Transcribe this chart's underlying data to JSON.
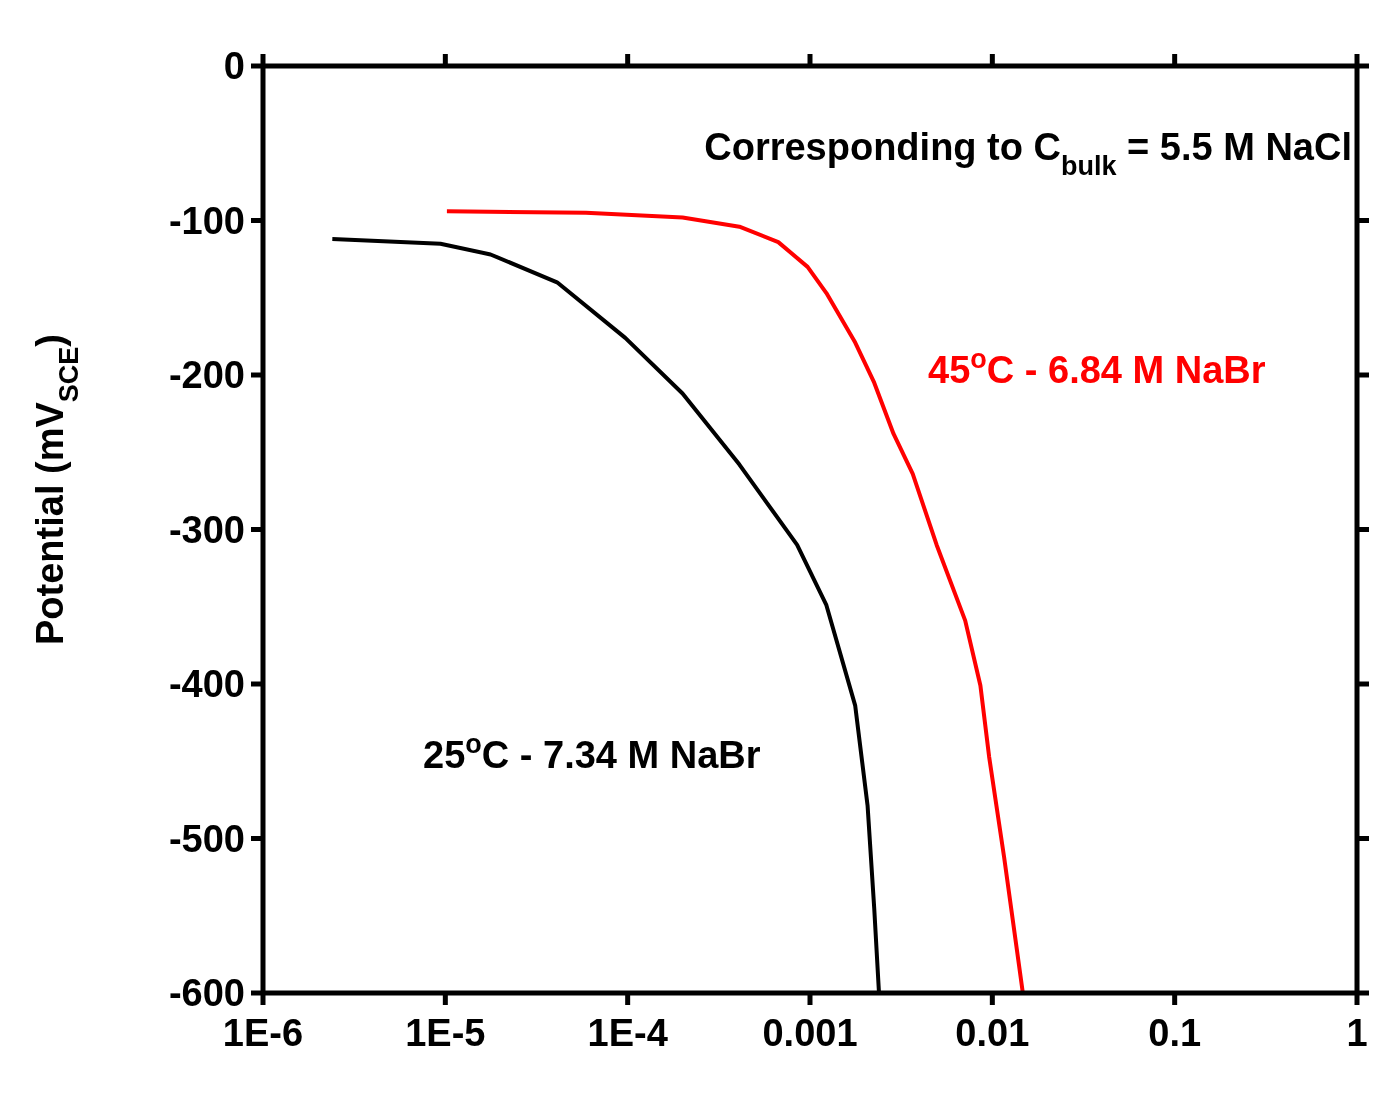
{
  "chart_data": {
    "type": "line",
    "ylabel": "Potential (mV$_{SCE}$)",
    "annotations": [
      "Corresponding to C$_{bulk}$ = 5.5 M NaCl"
    ],
    "log": "x",
    "xlim": [
      1e-06,
      1
    ],
    "xticks": [
      {
        "value": 1e-06,
        "label": "1E-6"
      },
      {
        "value": 1e-05,
        "label": "1E-5"
      },
      {
        "value": 0.0001,
        "label": "1E-4"
      },
      0.001,
      0.01,
      0.1,
      1
    ],
    "ylim": [
      -600,
      0
    ],
    "yticks": [
      -600,
      -500,
      -400,
      -300,
      -200,
      -100,
      0
    ],
    "marker": "none",
    "line_style": "solid",
    "series": [
      {
        "name": "25$^{o}$C - 7.34 M NaBr",
        "color": "#000000",
        "x": [
          2.4e-06,
          9.4e-06,
          1.77e-05,
          4.1e-05,
          9.7e-05,
          0.0002,
          0.00041,
          0.00085,
          0.00123,
          0.00177,
          0.00207,
          0.00225,
          0.00239
        ],
        "values": [
          -112,
          -115,
          -122,
          -140,
          -176,
          -212,
          -258,
          -310,
          -349,
          -414,
          -479,
          -545,
          -600
        ]
      },
      {
        "name": "45$^{o}$C - 6.84 M NaBr",
        "color": "#ff0000",
        "x": [
          1.02e-05,
          5.9e-05,
          0.0002,
          0.00041,
          0.00067,
          0.00097,
          0.00123,
          0.00177,
          0.00225,
          0.00287,
          0.00366,
          0.00495,
          0.0071,
          0.0086,
          0.0096,
          0.0116,
          0.0147
        ],
        "values": [
          -94,
          -95,
          -98,
          -104,
          -114,
          -130,
          -147,
          -179,
          -205,
          -238,
          -264,
          -310,
          -359,
          -401,
          -447,
          -512,
          -600
        ]
      }
    ]
  }
}
